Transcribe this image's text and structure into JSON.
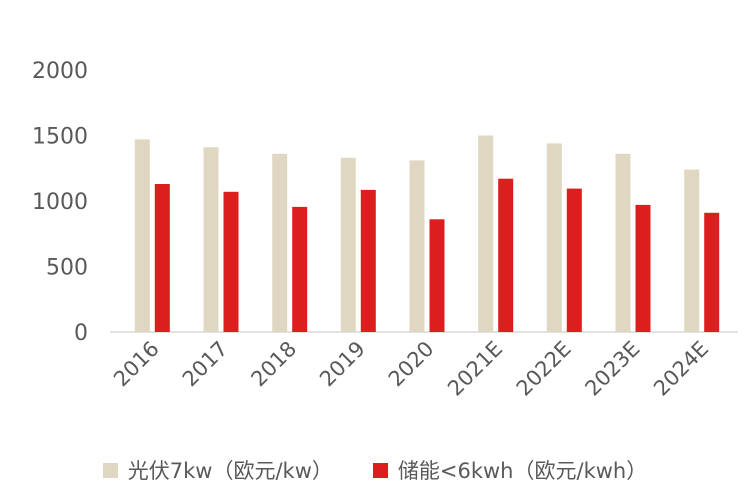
{
  "chart_data": {
    "type": "bar",
    "categories": [
      "2016",
      "2017",
      "2018",
      "2019",
      "2020",
      "2021E",
      "2022E",
      "2023E",
      "2024E"
    ],
    "series": [
      {
        "name": "光伏7kw（欧元/kw）",
        "color": "#e0d7c2",
        "values": [
          1470,
          1410,
          1360,
          1330,
          1310,
          1500,
          1440,
          1360,
          1240
        ]
      },
      {
        "name": "储能<6kwh（欧元/kwh）",
        "color": "#dc1e1e",
        "values": [
          1130,
          1070,
          955,
          1085,
          860,
          1170,
          1095,
          970,
          910
        ]
      }
    ],
    "yticks": [
      "0",
      "500",
      "1000",
      "1500",
      "2000"
    ],
    "ylim": [
      0,
      2000
    ],
    "grid": false,
    "legend_position": "bottom"
  }
}
